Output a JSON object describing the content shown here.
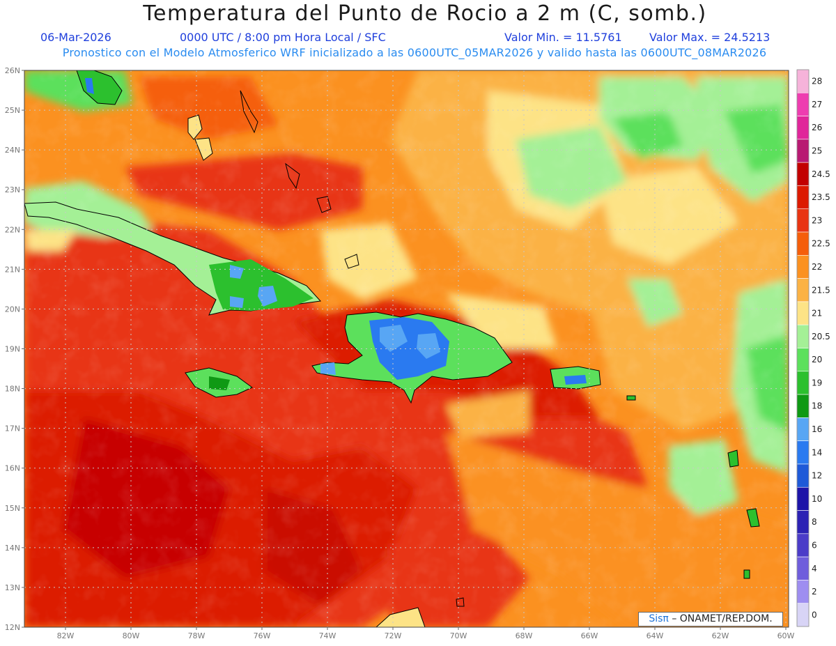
{
  "header": {
    "title": "Temperatura del Punto de Rocio a 2 m (C, somb.)",
    "date": "06-Mar-2026",
    "time_info": "0000 UTC / 8:00 pm Hora Local / SFC",
    "value_min": "Valor Min. = 11.5761",
    "value_max": "Valor Max. = 24.5213",
    "model_info": "Pronostico con el Modelo Atmosferico WRF inicializado a las 0600UTC_05MAR2026 y valido hasta las  0600UTC_08MAR2026"
  },
  "axes": {
    "lat_labels": [
      "26N",
      "25N",
      "24N",
      "23N",
      "22N",
      "21N",
      "20N",
      "19N",
      "18N",
      "17N",
      "16N",
      "15N",
      "14N",
      "13N",
      "12N"
    ],
    "lon_labels": [
      "82W",
      "80W",
      "78W",
      "76W",
      "74W",
      "72W",
      "70W",
      "68W",
      "66W",
      "64W",
      "62W",
      "60W"
    ]
  },
  "colorbar": {
    "labels": [
      "28",
      "27",
      "26",
      "25",
      "24.5",
      "23.5",
      "23",
      "22.5",
      "22",
      "21.5",
      "21",
      "20.5",
      "20",
      "19",
      "18",
      "16",
      "14",
      "12",
      "10",
      "8",
      "6",
      "4",
      "2",
      "0"
    ],
    "colors": [
      "#f6b3da",
      "#ee3db0",
      "#e0269a",
      "#b81a72",
      "#c20000",
      "#dc1a00",
      "#e83412",
      "#f55e0a",
      "#fb9120",
      "#fbb244",
      "#fde386",
      "#a4f096",
      "#5ce05c",
      "#2cc02e",
      "#0f9914",
      "#58a6f4",
      "#2a7af0",
      "#1e5ad8",
      "#1d14a8",
      "#2c22b4",
      "#4b3cc8",
      "#6f5edc",
      "#9e8ef0",
      "#d8d4f6"
    ]
  },
  "credit": {
    "brand": "Sis",
    "pi": "π",
    "text": "– ONAMET/REP.DOM."
  },
  "field": {
    "min": 11.5761,
    "max": 24.5213,
    "land_color": "#000000",
    "grid_color": "#c8c8c8"
  }
}
